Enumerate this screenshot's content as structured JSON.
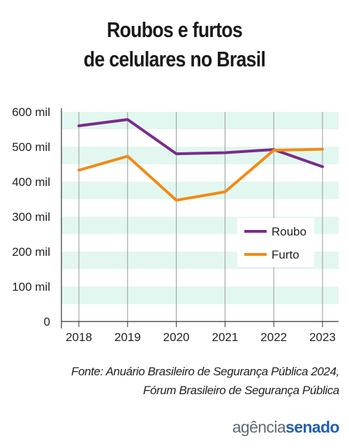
{
  "title": {
    "line1": "Roubos e furtos",
    "line2": "de celulares no Brasil"
  },
  "chart_data": {
    "type": "line",
    "title": "Roubos e furtos de celulares no Brasil",
    "x": [
      "2018",
      "2019",
      "2020",
      "2021",
      "2022",
      "2023"
    ],
    "yticks": [
      "0",
      "100 mil",
      "200 mil",
      "300 mil",
      "400 mil",
      "500 mil",
      "600 mil"
    ],
    "ylim": [
      0,
      600000
    ],
    "grid": "horizontal bands",
    "legend_position": "right",
    "series": [
      {
        "name": "Roubo",
        "color": "#7b2a8c",
        "values": [
          560000,
          578000,
          480000,
          483000,
          492000,
          443000
        ]
      },
      {
        "name": "Furto",
        "color": "#f28a14",
        "values": [
          433000,
          473000,
          347000,
          371000,
          490000,
          493000
        ]
      }
    ]
  },
  "colors": {
    "band": "#e2f7ef",
    "axis": "#333333"
  },
  "source": {
    "line1": "Fonte: Anuário Brasileiro de Segurança Pública 2024,",
    "line2": "Fórum Brasileiro de Segurança Pública"
  },
  "logo": {
    "part1": "agência",
    "part2": "senado"
  }
}
